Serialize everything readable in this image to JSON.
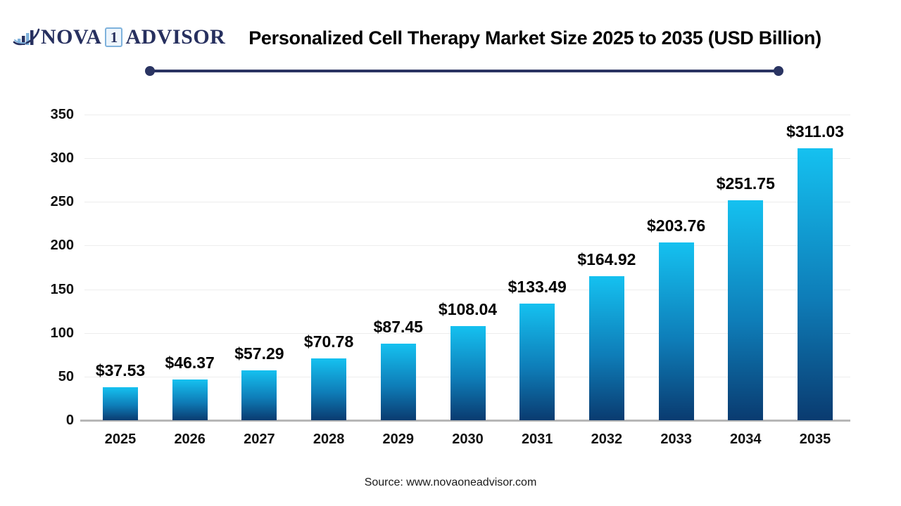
{
  "logo": {
    "nova": "NOVA",
    "one": "1",
    "advisor": "ADVISOR",
    "navy": "#27305F",
    "light_blue": "#7FB2DC"
  },
  "header": {
    "title": "Personalized Cell Therapy Market Size 2025 to 2035 (USD Billion)"
  },
  "footer": {
    "source": "Source: www.novaoneadvisor.com"
  },
  "colors": {
    "bar_gradient_top": "#15C1F0",
    "bar_gradient_bottom": "#0A3B70",
    "rule_navy": "#2A3462",
    "gridline": "#EDEDED",
    "axis_line": "#B7B7B7",
    "label_black": "#000000"
  },
  "chart_data": {
    "type": "bar",
    "title": "Personalized Cell Therapy Market Size 2025 to 2035 (USD Billion)",
    "unit": "USD Billion",
    "categories": [
      "2025",
      "2026",
      "2027",
      "2028",
      "2029",
      "2030",
      "2031",
      "2032",
      "2033",
      "2034",
      "2035"
    ],
    "values": [
      37.53,
      46.37,
      57.29,
      70.78,
      87.45,
      108.04,
      133.49,
      164.92,
      203.76,
      251.75,
      311.03
    ],
    "labels": [
      "$37.53",
      "$46.37",
      "$57.29",
      "$70.78",
      "$87.45",
      "$108.04",
      "$133.49",
      "$164.92",
      "$203.76",
      "$251.75",
      "$311.03"
    ],
    "xlabel": "",
    "ylabel": "",
    "ylim": [
      0,
      350
    ],
    "ytick_step": 50,
    "yticks": [
      "0",
      "50",
      "100",
      "150",
      "200",
      "250",
      "300",
      "350"
    ],
    "grid": true,
    "legend": "none",
    "source": "Source: www.novaoneadvisor.com"
  }
}
